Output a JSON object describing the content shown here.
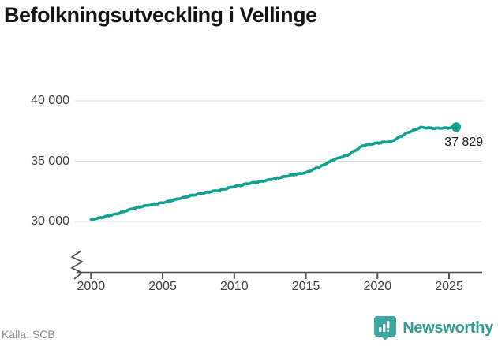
{
  "title": "Befolkningsutveckling i Vellinge",
  "source": "Källa: SCB",
  "logo": {
    "text": "Newsworthy"
  },
  "colors": {
    "line": "#10a090",
    "grid": "#dcdcdc",
    "axis": "#4d4d4d",
    "logo_icon": "#3aa7a1"
  },
  "chart_data": {
    "type": "line",
    "title": "Befolkningsutveckling i Vellinge",
    "x": [
      2000,
      2001,
      2002,
      2003,
      2004,
      2005,
      2006,
      2007,
      2008,
      2009,
      2010,
      2011,
      2012,
      2013,
      2014,
      2015,
      2016,
      2017,
      2018,
      2019,
      2020,
      2021,
      2022,
      2023,
      2024,
      2025,
      2025.5
    ],
    "values": [
      30150,
      30400,
      30700,
      31100,
      31350,
      31550,
      31850,
      32150,
      32400,
      32600,
      32900,
      33150,
      33350,
      33600,
      33850,
      34050,
      34550,
      35150,
      35550,
      36300,
      36500,
      36650,
      37300,
      37800,
      37720,
      37760,
      37829
    ],
    "latest_point": {
      "x": 2025.5,
      "value": 37829,
      "label": "37 829"
    },
    "xticks": [
      {
        "value": 2000,
        "label": "2000"
      },
      {
        "value": 2005,
        "label": "2005"
      },
      {
        "value": 2010,
        "label": "2010"
      },
      {
        "value": 2015,
        "label": "2015"
      },
      {
        "value": 2020,
        "label": "2020"
      },
      {
        "value": 2025,
        "label": "2025"
      }
    ],
    "yticks": [
      {
        "value": 30000,
        "label": "30 000"
      },
      {
        "value": 35000,
        "label": "35 000"
      },
      {
        "value": 40000,
        "label": "40 000"
      }
    ],
    "ylim": [
      30000,
      40000
    ],
    "axis_break": true,
    "grid": "horizontal",
    "legend": "none",
    "xlabel": "",
    "ylabel": ""
  }
}
